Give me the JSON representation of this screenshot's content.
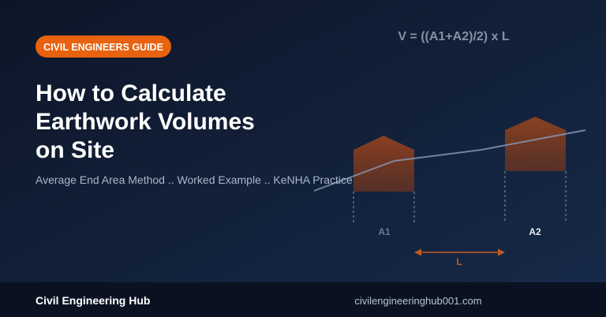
{
  "badge": "CIVIL ENGINEERS GUIDE",
  "title": {
    "lines": [
      "How to Calculate",
      "Earthwork Volumes",
      "on Site"
    ]
  },
  "subtitle": "Average End Area Method .. Worked Example .. KeNHA Practice",
  "formula": "V = ((A1+A2)/2) x L",
  "diagram": {
    "section_1": "A1",
    "section_2": "A2",
    "length": "L"
  },
  "footer": {
    "brand": "Civil Engineering Hub",
    "url": "civilengineeringhub001.com"
  }
}
